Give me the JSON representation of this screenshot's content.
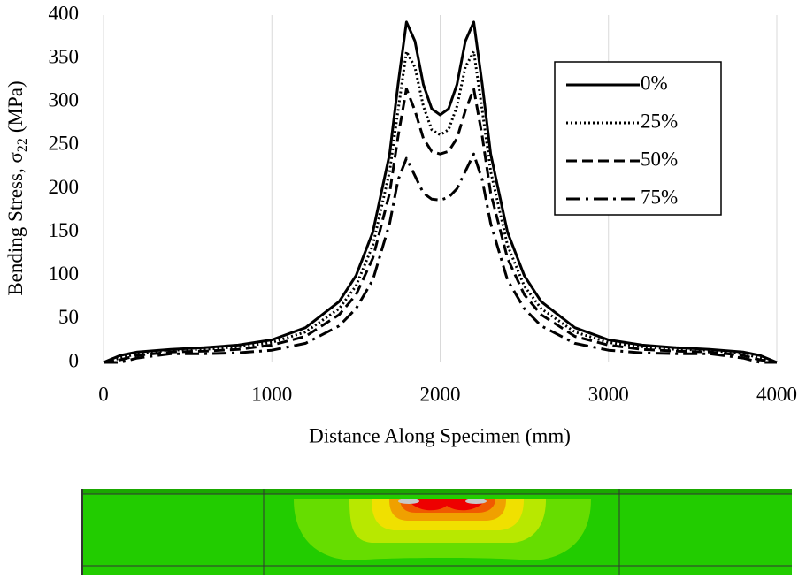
{
  "chart_data": {
    "type": "line",
    "x_label": "Distance Along Specimen (mm)",
    "y_label": {
      "main": "Bending Stress, σ",
      "subscript": "22",
      "unit": "(MPa)"
    },
    "x": [
      0,
      100,
      200,
      400,
      600,
      800,
      1000,
      1200,
      1400,
      1500,
      1600,
      1700,
      1750,
      1800,
      1850,
      1900,
      1950,
      2000,
      2050,
      2100,
      2150,
      2200,
      2250,
      2300,
      2400,
      2500,
      2600,
      2800,
      3000,
      3200,
      3400,
      3600,
      3800,
      3900,
      4000
    ],
    "series": [
      {
        "name": "0%",
        "color": "#000000",
        "dash": "solid",
        "values": [
          0,
          8,
          12,
          15,
          17,
          20,
          26,
          40,
          70,
          100,
          150,
          240,
          320,
          392,
          370,
          320,
          292,
          285,
          292,
          320,
          370,
          392,
          320,
          240,
          150,
          100,
          70,
          40,
          26,
          20,
          17,
          15,
          12,
          8,
          0
        ]
      },
      {
        "name": "25%",
        "color": "#000000",
        "dash": "dotted",
        "values": [
          0,
          5,
          10,
          14,
          15,
          18,
          23,
          35,
          62,
          88,
          135,
          220,
          290,
          358,
          340,
          295,
          268,
          262,
          268,
          295,
          340,
          358,
          290,
          220,
          135,
          88,
          62,
          35,
          23,
          18,
          15,
          14,
          10,
          5,
          0
        ]
      },
      {
        "name": "50%",
        "color": "#000000",
        "dash": "dashed",
        "values": [
          0,
          3,
          8,
          12,
          13,
          15,
          20,
          30,
          55,
          78,
          120,
          195,
          260,
          315,
          290,
          258,
          243,
          240,
          243,
          258,
          290,
          315,
          260,
          195,
          120,
          78,
          55,
          30,
          20,
          15,
          13,
          12,
          8,
          3,
          0
        ]
      },
      {
        "name": "75%",
        "color": "#000000",
        "dash": "dashdot",
        "values": [
          0,
          0,
          5,
          10,
          10,
          11,
          14,
          22,
          42,
          62,
          95,
          160,
          210,
          235,
          215,
          195,
          188,
          187,
          190,
          200,
          220,
          240,
          210,
          160,
          95,
          62,
          42,
          22,
          14,
          11,
          10,
          10,
          5,
          0,
          0
        ]
      }
    ],
    "xlim": [
      0,
      4000
    ],
    "xticks": [
      0,
      1000,
      2000,
      3000,
      4000
    ],
    "ylim": [
      0,
      400
    ],
    "yticks": [
      0,
      50,
      100,
      150,
      200,
      250,
      300,
      350,
      400
    ],
    "grid": "x",
    "legend": "upper right"
  }
}
